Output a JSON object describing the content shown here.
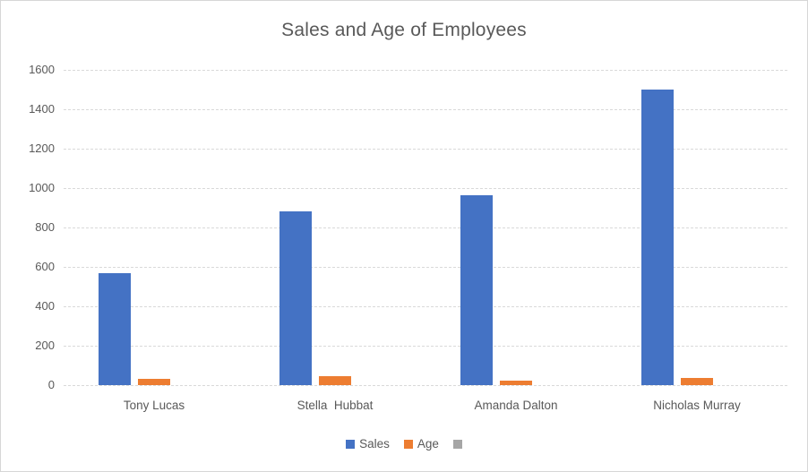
{
  "chart_data": {
    "type": "bar",
    "title": "Sales and Age of Employees",
    "categories": [
      "Tony Lucas",
      "Stella  Hubbat",
      "Amanda Dalton",
      "Nicholas Murray"
    ],
    "series": [
      {
        "name": "Sales",
        "color": "#4472c4",
        "values": [
          570,
          880,
          965,
          1500
        ]
      },
      {
        "name": "Age",
        "color": "#ed7d31",
        "values": [
          30,
          45,
          25,
          35
        ]
      },
      {
        "name": "",
        "color": "#a6a6a6",
        "values": [
          null,
          null,
          null,
          null
        ]
      }
    ],
    "y_axis": {
      "min": 0,
      "max": 1600,
      "step": 200,
      "tick_labels": [
        "1600",
        "1400",
        "1200",
        "1000",
        "800",
        "600",
        "400",
        "200",
        "0"
      ]
    },
    "xlabel": "",
    "ylabel": "",
    "grid": true,
    "legend_position": "bottom",
    "colors": {
      "title_text": "#595959",
      "axis_text": "#595959",
      "gridline": "#d9d9d9",
      "background": "#ffffff",
      "border": "#d6d6d6"
    }
  }
}
